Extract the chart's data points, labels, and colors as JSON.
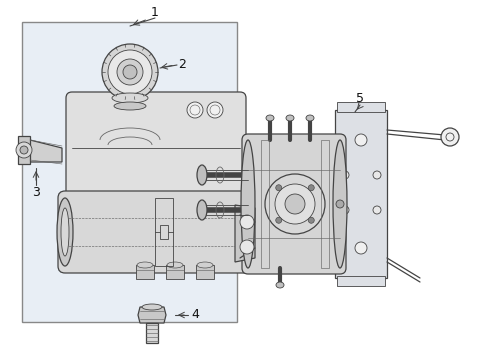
{
  "fig_width": 4.9,
  "fig_height": 3.6,
  "dpi": 100,
  "bg_color": "#ffffff",
  "box_bg": "#e8eef5",
  "box_edge": "#aaaaaa",
  "line_color": "#444444",
  "line_color2": "#666666",
  "white": "#ffffff",
  "light": "#d8d8d8",
  "mid": "#bbbbbb",
  "dark": "#888888"
}
